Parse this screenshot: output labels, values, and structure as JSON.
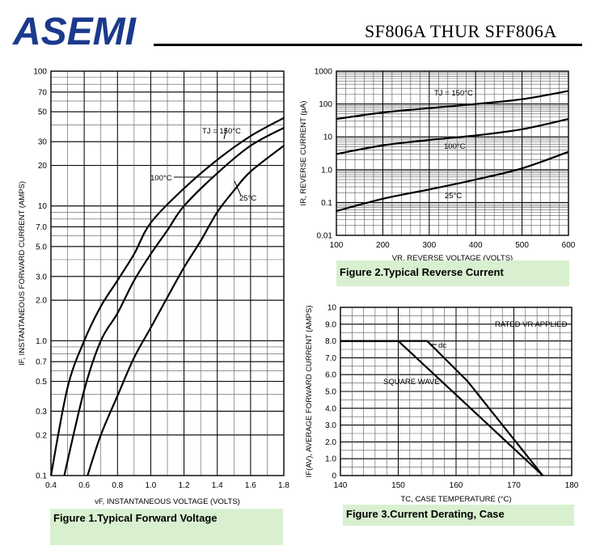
{
  "header": {
    "logo_text": "ASEMI",
    "part_title": "SF806A THUR SFF806A"
  },
  "colors": {
    "logo": "#1b3a8c",
    "caption_bg": "#d8f0d0"
  },
  "captions": {
    "fig1": "Figure 1.Typical  Forward  Voltage",
    "fig2": "Figure 2.Typical  Reverse  Current",
    "fig3": "Figure 3.Current  Derating,  Case"
  },
  "chart_data": [
    {
      "id": "fig1",
      "type": "line",
      "xlabel": "vF, INSTANTANEOUS VOLTAGE (VOLTS)",
      "ylabel": "IF, INSTANTANEOUS FORWARD CURRENT (AMPS)",
      "xlim": [
        0.4,
        1.8
      ],
      "ylim": [
        0.1,
        100
      ],
      "yscale": "log",
      "grid": true,
      "xticks": [
        0.4,
        0.6,
        0.8,
        1.0,
        1.2,
        1.4,
        1.6,
        1.8
      ],
      "xtick_labels": [
        "0.4",
        "0.6",
        "0.8",
        "1.0",
        "1.2",
        "1.4",
        "1.6",
        "1.8"
      ],
      "yticks": [
        0.1,
        0.2,
        0.3,
        0.5,
        0.7,
        1.0,
        2.0,
        3.0,
        5.0,
        7.0,
        10,
        20,
        30,
        50,
        70,
        100
      ],
      "ytick_labels": [
        "0.1",
        "0.2",
        "0.3",
        "0.5",
        "0.7",
        "1.0",
        "2.0",
        "3.0",
        "5.0",
        "7.0",
        "10",
        "20",
        "30",
        "50",
        "70",
        "100"
      ],
      "series": [
        {
          "name": "TJ = 150°C",
          "x": [
            0.4,
            0.5,
            0.6,
            0.7,
            0.8,
            0.9,
            1.0,
            1.2,
            1.4,
            1.6,
            1.8
          ],
          "y": [
            0.1,
            0.45,
            1.0,
            1.8,
            2.8,
            4.4,
            7.5,
            13.5,
            22,
            33,
            45
          ]
        },
        {
          "name": "100°C",
          "x": [
            0.48,
            0.6,
            0.7,
            0.8,
            0.9,
            1.0,
            1.1,
            1.2,
            1.4,
            1.6,
            1.8
          ],
          "y": [
            0.1,
            0.43,
            1.0,
            1.6,
            2.8,
            4.4,
            6.6,
            10,
            17.5,
            28,
            38
          ]
        },
        {
          "name": "25°C",
          "x": [
            0.62,
            0.7,
            0.8,
            0.9,
            1.0,
            1.1,
            1.2,
            1.3,
            1.4,
            1.5,
            1.6,
            1.8
          ],
          "y": [
            0.1,
            0.2,
            0.39,
            0.75,
            1.25,
            2.1,
            3.5,
            5.5,
            9,
            13,
            18,
            28
          ]
        }
      ],
      "annotations": [
        "TJ = 150°C",
        "100°C",
        "25°C"
      ]
    },
    {
      "id": "fig2",
      "type": "line",
      "xlabel": "VR, REVERSE VOLTAGE (VOLTS)",
      "ylabel": "IR, REVERSE CURRENT (µA)",
      "xlim": [
        100,
        600
      ],
      "ylim": [
        0.01,
        1000
      ],
      "yscale": "log",
      "grid": true,
      "xticks": [
        100,
        200,
        300,
        400,
        500,
        600
      ],
      "xtick_labels": [
        "100",
        "200",
        "300",
        "400",
        "500",
        "600"
      ],
      "yticks": [
        0.01,
        0.1,
        1,
        10,
        100,
        1000
      ],
      "ytick_labels": [
        "0.01",
        "0.1",
        "1.0",
        "10",
        "100",
        "1000"
      ],
      "series": [
        {
          "name": "TJ = 150°C",
          "x": [
            100,
            200,
            300,
            400,
            500,
            600
          ],
          "y": [
            35,
            55,
            75,
            100,
            140,
            250
          ]
        },
        {
          "name": "100°C",
          "x": [
            100,
            200,
            300,
            400,
            500,
            600
          ],
          "y": [
            3,
            5.5,
            8,
            11,
            17,
            35
          ]
        },
        {
          "name": "25°C",
          "x": [
            100,
            200,
            300,
            400,
            500,
            600
          ],
          "y": [
            0.055,
            0.13,
            0.25,
            0.5,
            1.1,
            3.5
          ]
        }
      ],
      "annotations": [
        "TJ = 150°C",
        "100°C",
        "25°C"
      ]
    },
    {
      "id": "fig3",
      "type": "line",
      "xlabel": "TC, CASE TEMPERATURE (°C)",
      "ylabel": "IF(AV), AVERAGE FORWARD CURRENT (AMPS)",
      "xlim": [
        140,
        180
      ],
      "ylim": [
        0,
        10
      ],
      "grid": true,
      "xticks": [
        140,
        150,
        160,
        170,
        180
      ],
      "xtick_labels": [
        "140",
        "150",
        "160",
        "170",
        "180"
      ],
      "yticks": [
        0,
        1,
        2,
        3,
        4,
        5,
        6,
        7,
        8,
        9,
        10
      ],
      "ytick_labels": [
        "0",
        "1.0",
        "2.0",
        "3.0",
        "4.0",
        "5.0",
        "6.0",
        "7.0",
        "8.0",
        "9.0",
        "10"
      ],
      "series": [
        {
          "name": "dc",
          "x": [
            140,
            155,
            162,
            175
          ],
          "y": [
            8,
            8,
            5.6,
            0
          ]
        },
        {
          "name": "SQUARE WAVE",
          "x": [
            140,
            150,
            175
          ],
          "y": [
            8,
            8,
            0
          ]
        }
      ],
      "annotations": [
        "RATED VR APPLIED",
        "dc",
        "SQUARE WAVE"
      ]
    }
  ]
}
